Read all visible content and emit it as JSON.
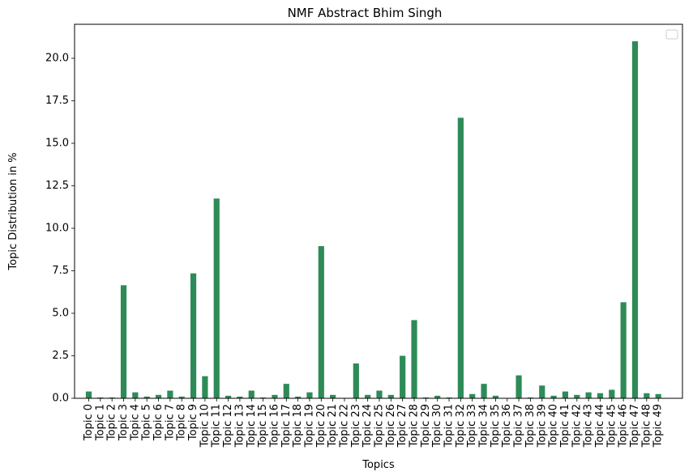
{
  "chart_data": {
    "type": "bar",
    "title": "NMF Abstract Bhim Singh",
    "xlabel": "Topics",
    "ylabel": "Topic Distribution in %",
    "ylim": [
      0,
      22
    ],
    "yticks": [
      "0.0",
      "2.5",
      "5.0",
      "7.5",
      "10.0",
      "12.5",
      "15.0",
      "17.5",
      "20.0"
    ],
    "categories": [
      "Topic 0",
      "Topic 1",
      "Topic 2",
      "Topic 3",
      "Topic 4",
      "Topic 5",
      "Topic 6",
      "Topic 7",
      "Topic 8",
      "Topic 9",
      "Topic 10",
      "Topic 11",
      "Topic 12",
      "Topic 13",
      "Topic 14",
      "Topic 15",
      "Topic 16",
      "Topic 17",
      "Topic 18",
      "Topic 19",
      "Topic 20",
      "Topic 21",
      "Topic 22",
      "Topic 23",
      "Topic 24",
      "Topic 25",
      "Topic 26",
      "Topic 27",
      "Topic 28",
      "Topic 29",
      "Topic 30",
      "Topic 31",
      "Topic 32",
      "Topic 33",
      "Topic 34",
      "Topic 35",
      "Topic 36",
      "Topic 37",
      "Topic 38",
      "Topic 39",
      "Topic 40",
      "Topic 41",
      "Topic 42",
      "Topic 43",
      "Topic 44",
      "Topic 45",
      "Topic 46",
      "Topic 47",
      "Topic 48",
      "Topic 49"
    ],
    "values": [
      0.4,
      0.05,
      0.05,
      6.65,
      0.35,
      0.1,
      0.2,
      0.45,
      0.1,
      7.35,
      1.3,
      11.75,
      0.15,
      0.1,
      0.45,
      0.05,
      0.2,
      0.85,
      0.1,
      0.35,
      8.95,
      0.2,
      0.02,
      2.05,
      0.2,
      0.45,
      0.2,
      2.5,
      4.6,
      0.05,
      0.15,
      0.05,
      16.5,
      0.25,
      0.85,
      0.15,
      0.02,
      1.35,
      0.05,
      0.75,
      0.15,
      0.4,
      0.2,
      0.35,
      0.3,
      0.5,
      5.65,
      21.0,
      0.3,
      0.25
    ],
    "bar_color": "#2e8b57",
    "grid": false,
    "legend": "top-right (empty)"
  }
}
